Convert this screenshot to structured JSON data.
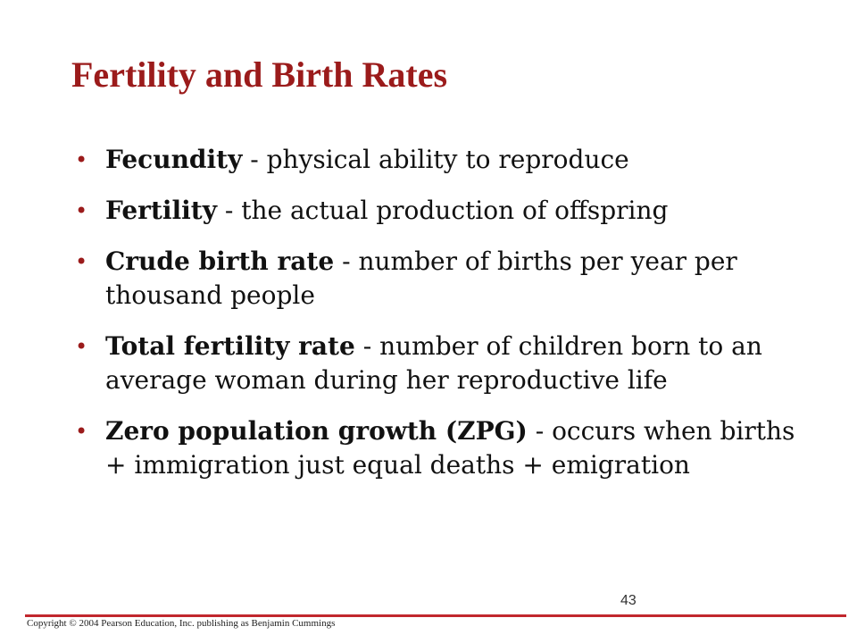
{
  "slide": {
    "title": "Fertility and Birth Rates",
    "bullets": [
      {
        "term": "Fecundity",
        "sep": " - ",
        "definition": "physical ability to reproduce"
      },
      {
        "term": "Fertility",
        "sep": " - ",
        "definition": "the actual production of offspring"
      },
      {
        "term": "Crude birth rate",
        "sep": " - ",
        "definition": "number of births per year per thousand people"
      },
      {
        "term": "Total fertility rate",
        "sep": " - ",
        "definition": "number of children born to an average woman during her reproductive life"
      },
      {
        "term": "Zero population growth (ZPG)",
        "sep": " - ",
        "definition": "occurs when births + immigration just equal deaths + emigration"
      }
    ],
    "bullet_symbol": "•",
    "page_number": "43",
    "copyright": "Copyright © 2004 Pearson Education, Inc. publishing as Benjamin Cummings"
  },
  "colors": {
    "title": "#9b1b1b",
    "bullet": "#9b1b1b",
    "footer_rule": "#c1272d",
    "text": "#111111"
  }
}
